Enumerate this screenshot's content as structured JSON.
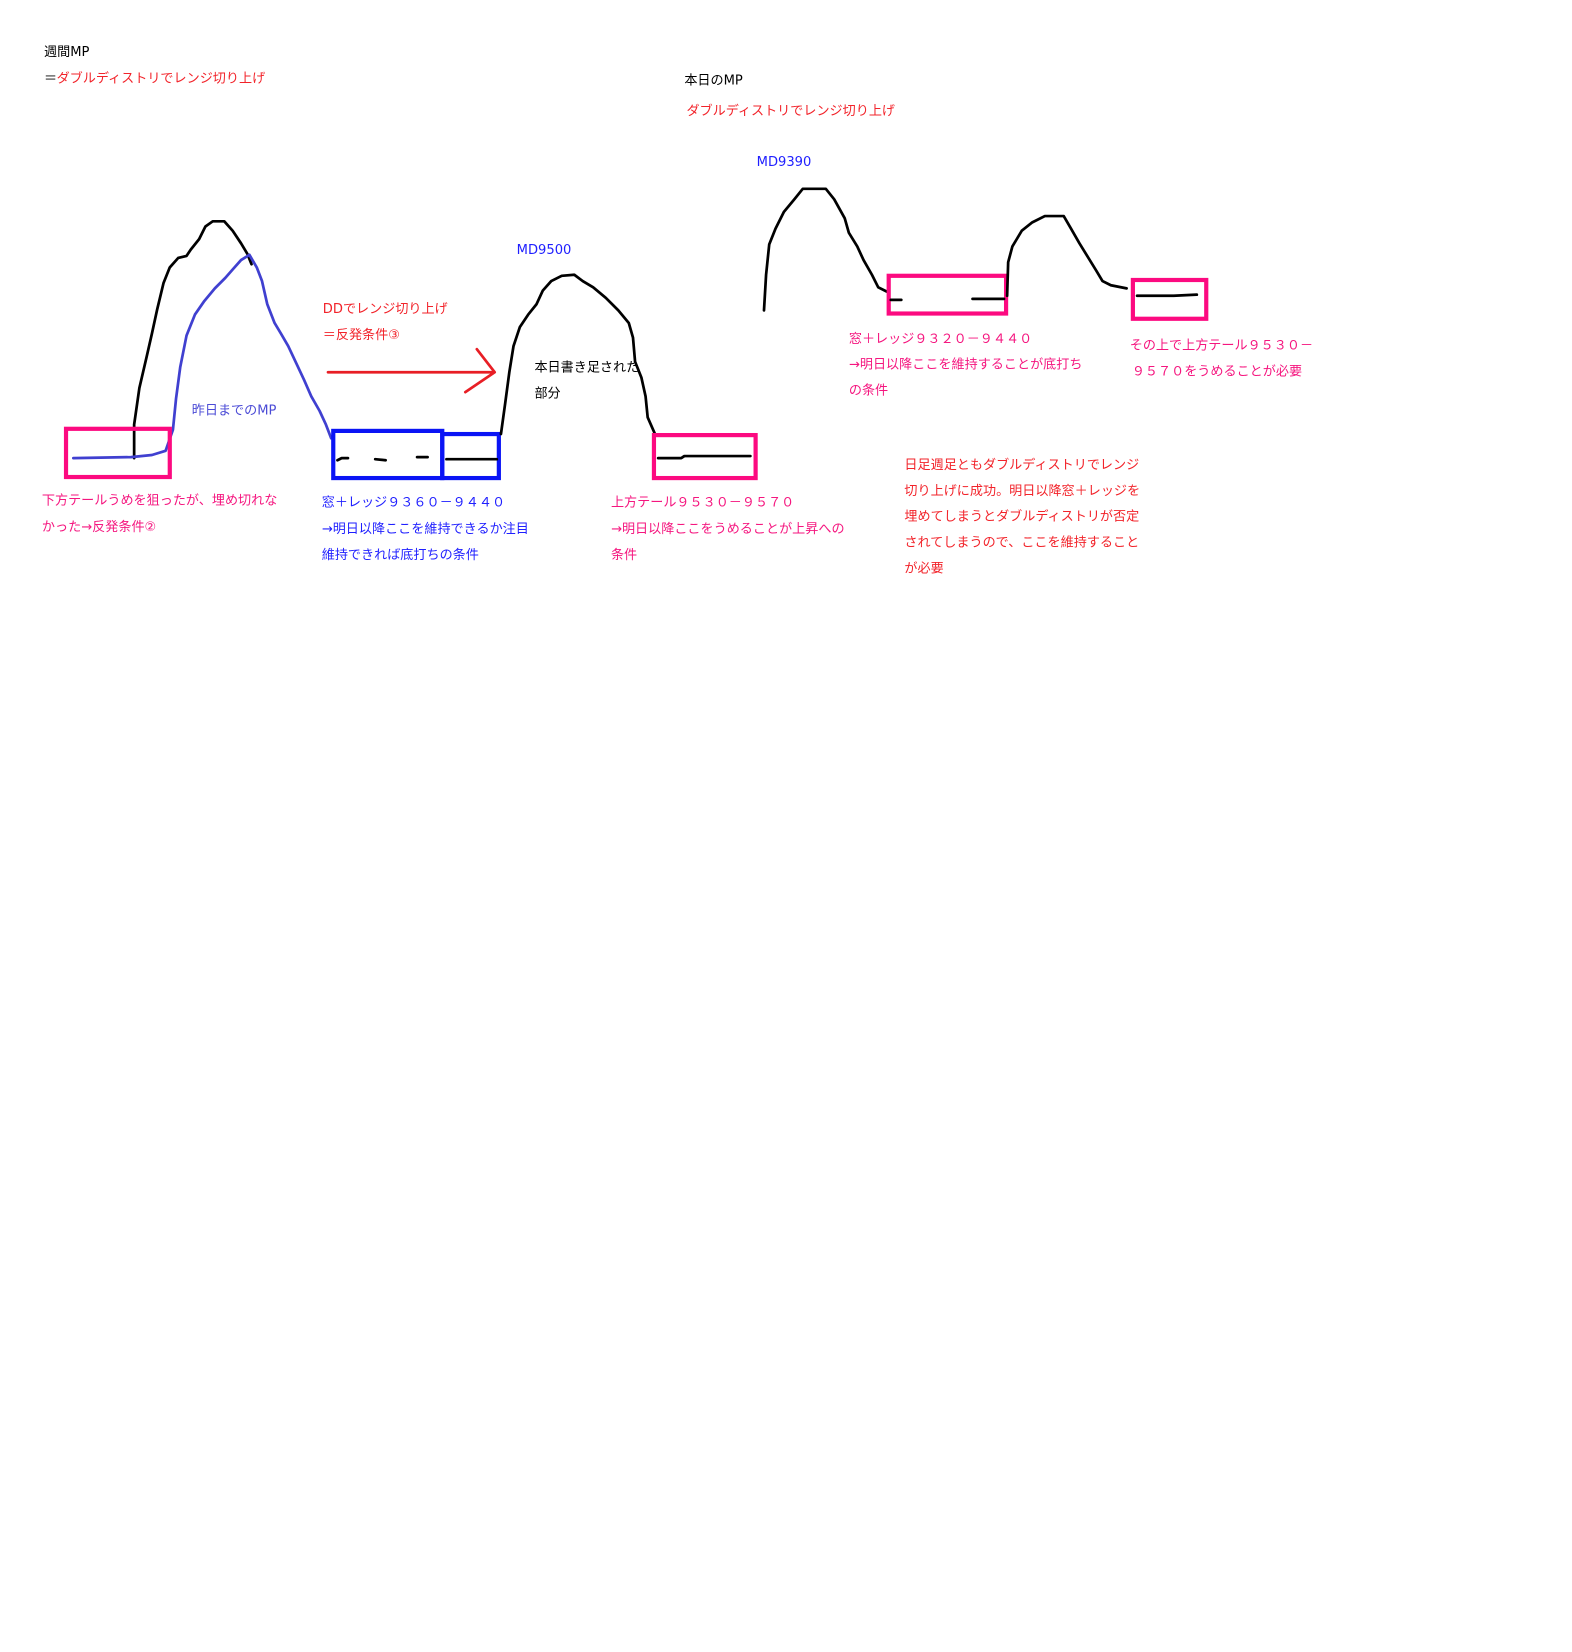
{
  "colors": {
    "black": "#000000",
    "red": "#f2232a",
    "pink": "#f5167f",
    "blue": "#1f1fff",
    "light_blue": "#4b4bd6",
    "box_pink": "#fc0a80",
    "box_blue": "#0a14f5"
  },
  "weekly": {
    "title": "週間MP",
    "eq": "＝",
    "subtitle": "ダブルディストリでレンジ切り上げ"
  },
  "today": {
    "title": "本日のMP",
    "subtitle": "ダブルディストリでレンジ切り上げ"
  },
  "labels": {
    "md9390": "MD9390",
    "md9500": "MD9500",
    "dd_line1": "DDでレンジ切り上げ",
    "dd_line2": "＝反発条件③",
    "added_line1": "本日書き足された",
    "added_line2": "部分",
    "yesterday": "昨日までのMP"
  },
  "notes": {
    "lower_tail": [
      "下方テールうめを狙ったが、埋め切れな",
      "かった→反発条件②"
    ],
    "window_ledge_weekly": [
      "窓＋レッジ９３６０－９４４０",
      "→明日以降ここを維持できるか注目",
      "維持できれば底打ちの条件"
    ],
    "upper_tail_weekly": [
      "上方テール９５３０－９５７０",
      "→明日以降ここをうめることが上昇への",
      "条件"
    ],
    "window_ledge_today": [
      "窓＋レッジ９３２０－９４４０",
      "→明日以降ここを維持することが底打ち",
      "の条件"
    ],
    "upper_tail_today": [
      "その上で上方テール９５３０－",
      "９５７０をうめることが必要"
    ],
    "summary": [
      "日足週足ともダブルディストリでレンジ",
      "切り上げに成功。明日以降窓＋レッジを",
      "埋めてしまうとダブルディストリが否定",
      "されてしまうので、ここを維持すること",
      "が必要"
    ]
  }
}
